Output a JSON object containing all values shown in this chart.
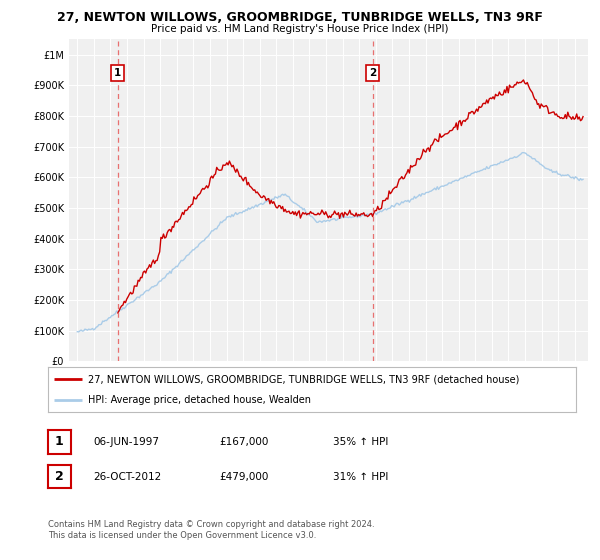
{
  "title1": "27, NEWTON WILLOWS, GROOMBRIDGE, TUNBRIDGE WELLS, TN3 9RF",
  "title2": "Price paid vs. HM Land Registry's House Price Index (HPI)",
  "legend_line1": "27, NEWTON WILLOWS, GROOMBRIDGE, TUNBRIDGE WELLS, TN3 9RF (detached house)",
  "legend_line2": "HPI: Average price, detached house, Wealden",
  "sale1_date": "06-JUN-1997",
  "sale1_price": "£167,000",
  "sale1_hpi": "35% ↑ HPI",
  "sale2_date": "26-OCT-2012",
  "sale2_price": "£479,000",
  "sale2_hpi": "31% ↑ HPI",
  "footer1": "Contains HM Land Registry data © Crown copyright and database right 2024.",
  "footer2": "This data is licensed under the Open Government Licence v3.0.",
  "hpi_color": "#aacce8",
  "price_color": "#cc0000",
  "dashed_color": "#e87070",
  "marker1_year": 1997.43,
  "marker2_year": 2012.82,
  "ylim": [
    0,
    1050000
  ],
  "yticks": [
    0,
    100000,
    200000,
    300000,
    400000,
    500000,
    600000,
    700000,
    800000,
    900000,
    1000000
  ],
  "ytick_labels": [
    "£0",
    "£100K",
    "£200K",
    "£300K",
    "£400K",
    "£500K",
    "£600K",
    "£700K",
    "£800K",
    "£900K",
    "£1M"
  ],
  "background_color": "#ffffff",
  "plot_bg_color": "#f0f0f0"
}
